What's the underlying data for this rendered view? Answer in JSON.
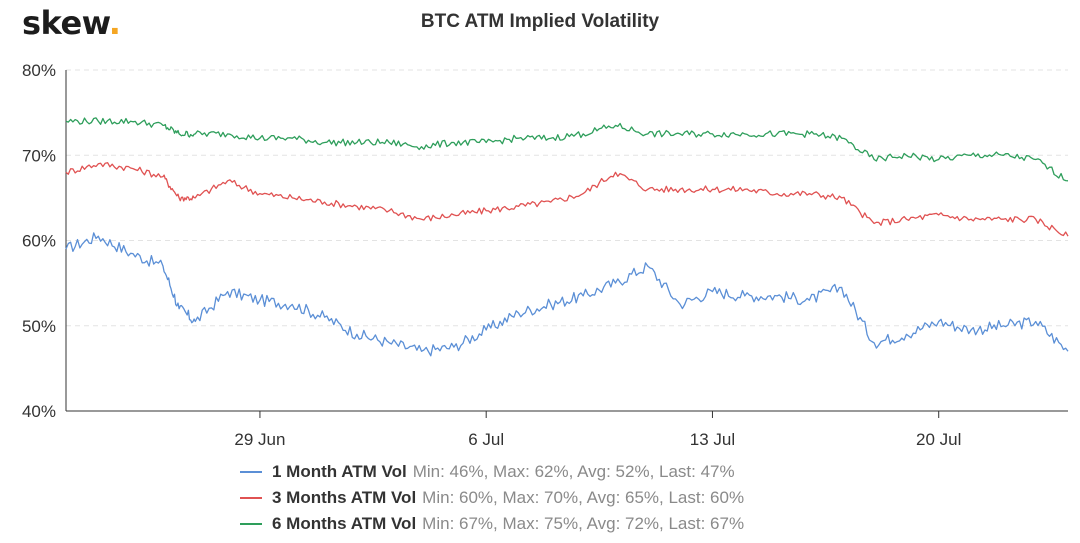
{
  "brand": {
    "logo_text": "skew",
    "logo_dot": "."
  },
  "chart_data": {
    "type": "line",
    "title": "BTC ATM Implied Volatility",
    "xlabel": "",
    "ylabel": "",
    "x_ticks": [
      "29 Jun",
      "6 Jul",
      "13 Jul",
      "20 Jul"
    ],
    "y_ticks": [
      "40%",
      "50%",
      "60%",
      "70%",
      "80%"
    ],
    "ylim": [
      40,
      80
    ],
    "xlim": [
      "2020-06-23",
      "2020-07-24"
    ],
    "grid": "horizontal dashed",
    "legend_position": "bottom",
    "series": [
      {
        "name": "1 Month ATM Vol",
        "stats": "Min: 46%, Max: 62%, Avg: 52%, Last: 47%",
        "color": "#5b8fd6",
        "x": [
          "2020-06-23",
          "2020-06-24",
          "2020-06-25",
          "2020-06-26",
          "2020-06-26 12:00",
          "2020-06-27",
          "2020-06-28",
          "2020-06-29",
          "2020-06-30",
          "2020-07-01",
          "2020-07-02",
          "2020-07-03",
          "2020-07-04",
          "2020-07-05",
          "2020-07-06",
          "2020-07-07",
          "2020-07-08",
          "2020-07-09",
          "2020-07-10",
          "2020-07-11",
          "2020-07-12",
          "2020-07-13",
          "2020-07-14",
          "2020-07-15",
          "2020-07-16",
          "2020-07-17",
          "2020-07-18",
          "2020-07-19",
          "2020-07-20",
          "2020-07-21",
          "2020-07-22",
          "2020-07-23",
          "2020-07-24"
        ],
        "values": [
          59,
          60.5,
          58.5,
          57,
          52,
          50.5,
          54,
          53,
          52.5,
          51,
          49,
          48,
          47,
          47.5,
          49.5,
          51.5,
          52.5,
          53.5,
          55,
          57,
          52.5,
          54,
          53.5,
          53.5,
          53,
          54.5,
          48,
          49,
          50.5,
          49.5,
          50,
          50.5,
          47
        ]
      },
      {
        "name": "3 Months ATM Vol",
        "stats": "Min: 60%, Max: 70%, Avg: 65%, Last: 60%",
        "color": "#e05252",
        "x": [
          "2020-06-23",
          "2020-06-24",
          "2020-06-25",
          "2020-06-26",
          "2020-06-26 12:00",
          "2020-06-27",
          "2020-06-28",
          "2020-06-29",
          "2020-06-30",
          "2020-07-01",
          "2020-07-02",
          "2020-07-03",
          "2020-07-04",
          "2020-07-05",
          "2020-07-06",
          "2020-07-07",
          "2020-07-08",
          "2020-07-09",
          "2020-07-10",
          "2020-07-11",
          "2020-07-12",
          "2020-07-13",
          "2020-07-14",
          "2020-07-15",
          "2020-07-16",
          "2020-07-17",
          "2020-07-18",
          "2020-07-19",
          "2020-07-20",
          "2020-07-21",
          "2020-07-22",
          "2020-07-23",
          "2020-07-24"
        ],
        "values": [
          68,
          69,
          68.5,
          67.5,
          65,
          65,
          67,
          65.5,
          65,
          64.5,
          64,
          63.5,
          62.5,
          63,
          63.5,
          64,
          64.5,
          65.5,
          68,
          66,
          66,
          66,
          66,
          65.5,
          65.5,
          65,
          62,
          62.5,
          63,
          62.5,
          62.5,
          62.5,
          60.5
        ]
      },
      {
        "name": "6 Months ATM Vol",
        "stats": "Min: 67%, Max: 75%, Avg: 72%, Last: 67%",
        "color": "#2e9e5b",
        "x": [
          "2020-06-23",
          "2020-06-24",
          "2020-06-25",
          "2020-06-26",
          "2020-06-26 12:00",
          "2020-06-27",
          "2020-06-28",
          "2020-06-29",
          "2020-06-30",
          "2020-07-01",
          "2020-07-02",
          "2020-07-03",
          "2020-07-04",
          "2020-07-05",
          "2020-07-06",
          "2020-07-07",
          "2020-07-08",
          "2020-07-09",
          "2020-07-10",
          "2020-07-11",
          "2020-07-12",
          "2020-07-13",
          "2020-07-14",
          "2020-07-15",
          "2020-07-16",
          "2020-07-17",
          "2020-07-18",
          "2020-07-19",
          "2020-07-20",
          "2020-07-21",
          "2020-07-22",
          "2020-07-23",
          "2020-07-24"
        ],
        "values": [
          74,
          74,
          74,
          73.5,
          72.5,
          72.5,
          72.5,
          72,
          72,
          71.5,
          71.5,
          71.5,
          71,
          71.5,
          71.5,
          72,
          72,
          72.5,
          73.5,
          72.5,
          72.5,
          72.5,
          72.5,
          72.5,
          72.5,
          72,
          69.5,
          70,
          69.5,
          70,
          70,
          69.5,
          67
        ]
      }
    ]
  }
}
